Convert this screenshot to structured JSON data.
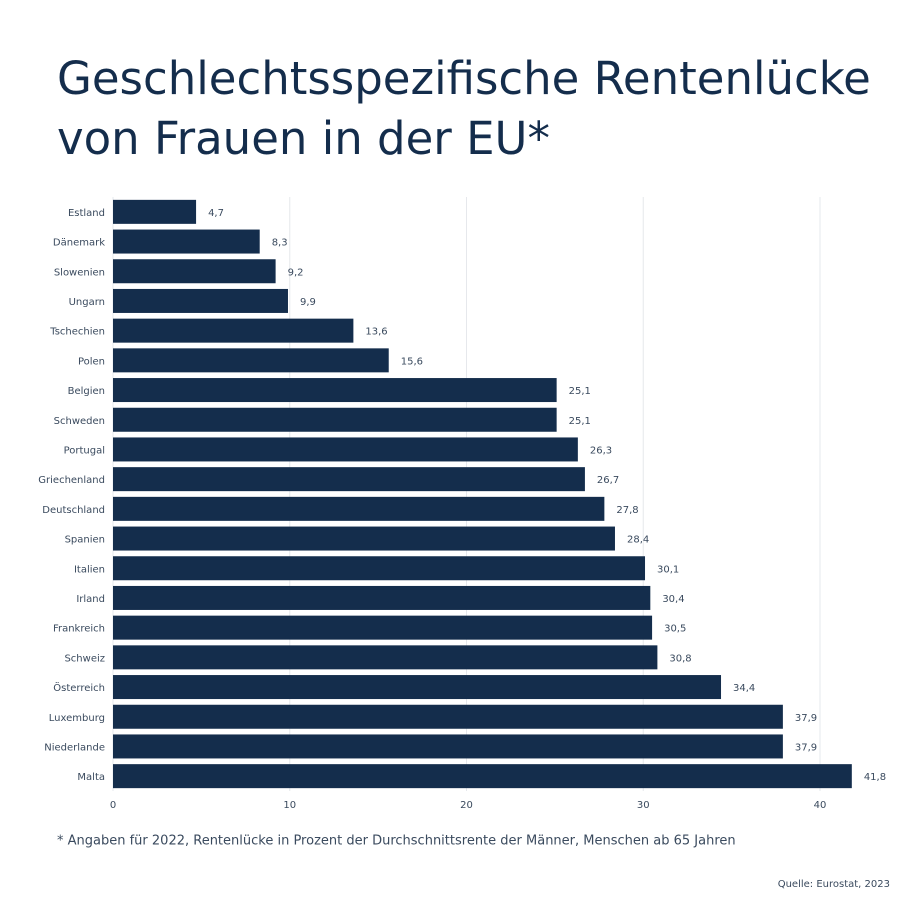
{
  "chart_data": {
    "type": "barh",
    "title": [
      "Geschlechtsspezifische Rentenlücke",
      "von Frauen in der EU*"
    ],
    "categories": [
      "Estland",
      "Dänemark",
      "Slowenien",
      "Ungarn",
      "Tschechien",
      "Polen",
      "Belgien",
      "Schweden",
      "Portugal",
      "Griechenland",
      "Deutschland",
      "Spanien",
      "Italien",
      "Irland",
      "Frankreich",
      "Schweiz",
      "Österreich",
      "Luxemburg",
      "Niederlande",
      "Malta"
    ],
    "values": [
      4.7,
      8.3,
      9.2,
      9.9,
      13.6,
      15.6,
      25.1,
      25.1,
      26.3,
      26.7,
      27.8,
      28.4,
      30.1,
      30.4,
      30.5,
      30.8,
      34.4,
      37.9,
      37.9,
      41.8
    ],
    "value_labels": [
      "4,7",
      "8,3",
      "9,2",
      "9,9",
      "13,6",
      "15,6",
      "25,1",
      "25,1",
      "26,3",
      "26,7",
      "27,8",
      "28,4",
      "30,1",
      "30,4",
      "30,5",
      "30,8",
      "34,4",
      "37,9",
      "37,9",
      "41,8"
    ],
    "color": "#142d4c",
    "xlim": [
      0,
      40
    ],
    "xticks": [
      0,
      10,
      20,
      30,
      40
    ],
    "grid": true,
    "footnote": "* Angaben für 2022, Rentenlücke in Prozent der Durchschnittsrente der Männer, Menschen ab 65 Jahren",
    "source": "Quelle: Eurostat, 2023"
  }
}
